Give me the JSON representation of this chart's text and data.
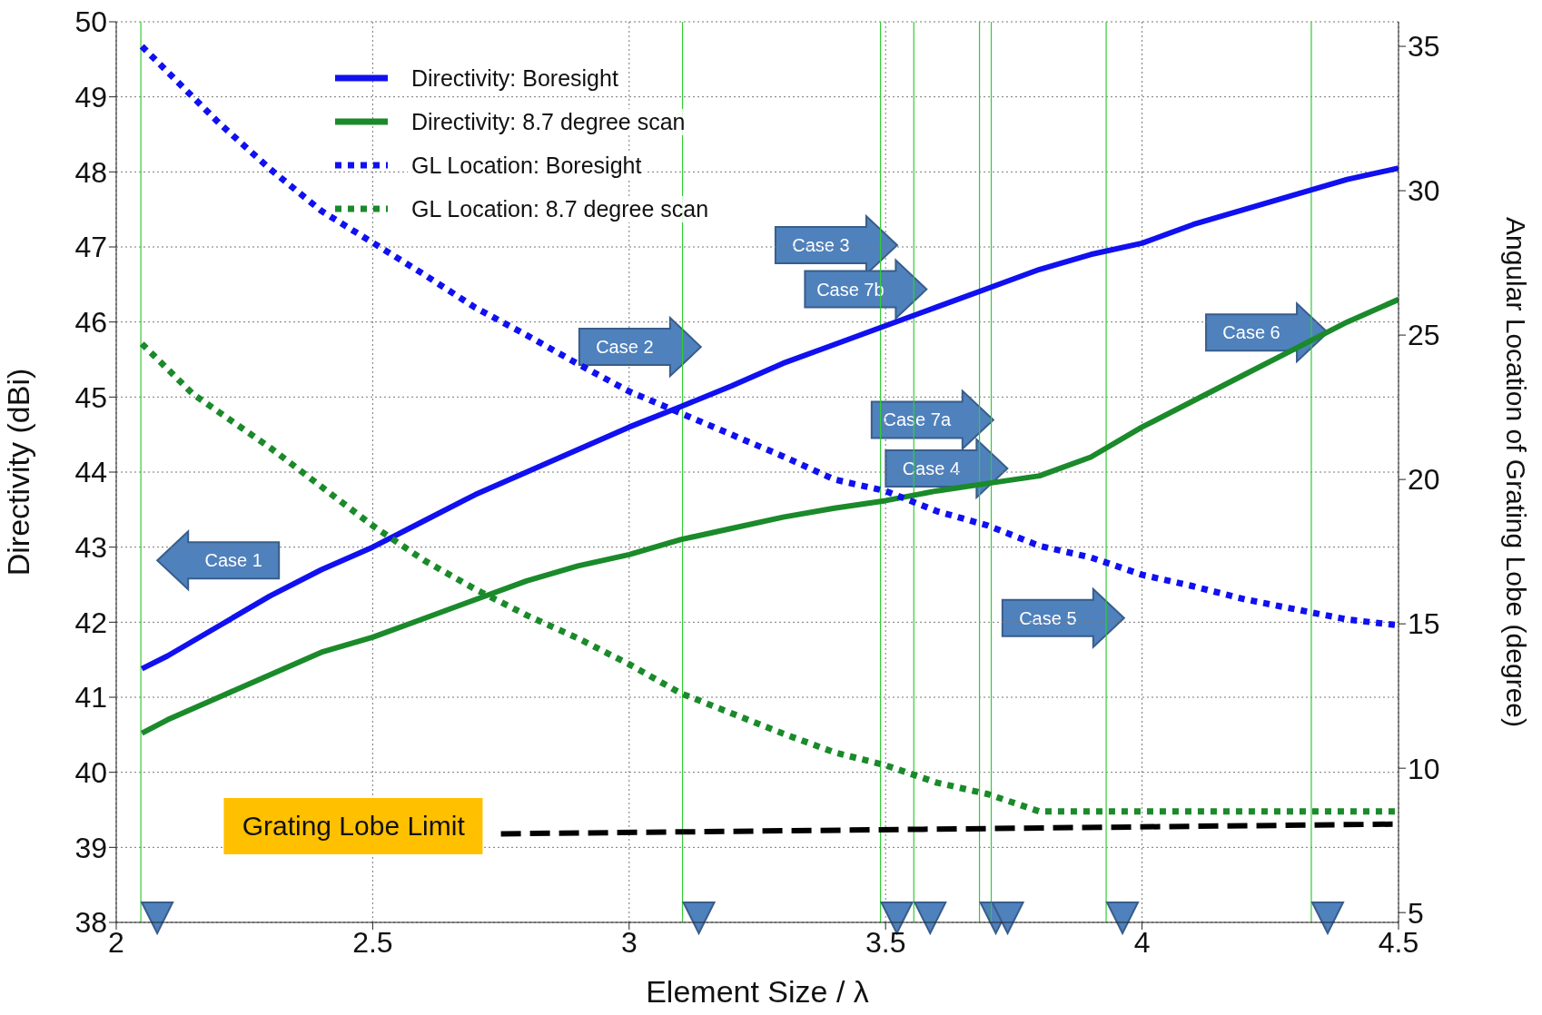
{
  "chart_data": {
    "type": "line",
    "xlabel": "Element Size / λ",
    "ylabel": "Directivity (dBi)",
    "y2label": "Angular Location of Grating Lobe (degree)",
    "xlim": [
      2,
      4.5
    ],
    "xticks": [
      2,
      2.5,
      3,
      3.5,
      4,
      4.5
    ],
    "ylim": [
      38,
      50
    ],
    "yticks": [
      38,
      39,
      40,
      41,
      42,
      43,
      44,
      45,
      46,
      47,
      48,
      49,
      50
    ],
    "y2lim": [
      4.66,
      35.85
    ],
    "y2ticks": [
      5,
      10,
      15,
      20,
      25,
      30,
      35
    ],
    "grid": true,
    "legend": "top left",
    "series": [
      {
        "name": "Directivity:  Boresight",
        "color": "#1010f0",
        "line_style": "solid",
        "x": [
          2.05,
          2.1,
          2.2,
          2.3,
          2.4,
          2.5,
          2.6,
          2.7,
          2.8,
          2.9,
          3.0,
          3.1,
          3.2,
          3.3,
          3.4,
          3.5,
          3.6,
          3.7,
          3.8,
          3.9,
          4.0,
          4.1,
          4.2,
          4.3,
          4.4,
          4.5
        ],
        "values": [
          41.38,
          41.55,
          41.95,
          42.35,
          42.7,
          43.0,
          43.35,
          43.7,
          44.0,
          44.3,
          44.6,
          44.87,
          45.15,
          45.45,
          45.7,
          45.95,
          46.2,
          46.45,
          46.7,
          46.9,
          47.05,
          47.3,
          47.5,
          47.7,
          47.9,
          48.05
        ]
      },
      {
        "name": "Directivity:  8.7 degree scan",
        "color": "#1a8a2a",
        "line_style": "solid",
        "x": [
          2.05,
          2.1,
          2.2,
          2.3,
          2.4,
          2.5,
          2.6,
          2.7,
          2.8,
          2.9,
          3.0,
          3.1,
          3.2,
          3.3,
          3.4,
          3.5,
          3.6,
          3.7,
          3.8,
          3.9,
          4.0,
          4.1,
          4.2,
          4.3,
          4.4,
          4.5
        ],
        "values": [
          40.52,
          40.7,
          41.0,
          41.3,
          41.6,
          41.8,
          42.05,
          42.3,
          42.55,
          42.75,
          42.9,
          43.1,
          43.25,
          43.4,
          43.52,
          43.62,
          43.75,
          43.85,
          43.95,
          44.2,
          44.6,
          44.95,
          45.3,
          45.65,
          46.0,
          46.3
        ]
      },
      {
        "name": "GL Location:  Boresight",
        "color": "#1010f0",
        "line_style": "dotted",
        "axis": "y2",
        "x": [
          2.05,
          2.2,
          2.3,
          2.4,
          2.5,
          2.6,
          2.7,
          2.8,
          2.9,
          3.0,
          3.1,
          3.2,
          3.3,
          3.4,
          3.5,
          3.6,
          3.7,
          3.8,
          3.9,
          4.0,
          4.1,
          4.2,
          4.3,
          4.4,
          4.5
        ],
        "values": [
          35.0,
          32.35,
          30.75,
          29.3,
          28.2,
          27.1,
          25.95,
          25.0,
          24.0,
          23.05,
          22.3,
          21.55,
          20.8,
          20.0,
          19.6,
          18.9,
          18.4,
          17.7,
          17.3,
          16.7,
          16.3,
          15.85,
          15.5,
          15.15,
          14.95
        ]
      },
      {
        "name": "GL Location:  8.7 degree scan",
        "color": "#1a8a2a",
        "line_style": "dotted",
        "axis": "y2",
        "x": [
          2.05,
          2.15,
          2.3,
          2.4,
          2.5,
          2.6,
          2.7,
          2.8,
          2.9,
          3.0,
          3.1,
          3.2,
          3.3,
          3.4,
          3.5,
          3.6,
          3.7,
          3.8,
          3.85,
          4.5
        ],
        "values": [
          24.7,
          22.95,
          21.1,
          19.75,
          18.4,
          17.2,
          16.2,
          15.3,
          14.5,
          13.6,
          12.6,
          11.9,
          11.2,
          10.55,
          10.1,
          9.5,
          9.1,
          8.5,
          8.5,
          8.5
        ]
      },
      {
        "color": "#000000",
        "line_style": "dashed",
        "x": [
          2.75,
          4.5
        ],
        "values": [
          39.18,
          39.31
        ]
      }
    ],
    "ref_lines": [
      {
        "axis": "x",
        "value": 2.048,
        "color": "#33cc33"
      },
      {
        "axis": "x",
        "value": 3.104,
        "color": "#33cc33"
      },
      {
        "axis": "x",
        "value": 3.49,
        "color": "#33cc33"
      },
      {
        "axis": "x",
        "value": 3.555,
        "color": "#33cc33"
      },
      {
        "axis": "x",
        "value": 3.683,
        "color": "#33cc33"
      },
      {
        "axis": "x",
        "value": 3.706,
        "color": "#33cc33"
      },
      {
        "axis": "x",
        "value": 3.93,
        "color": "#33cc33"
      },
      {
        "axis": "x",
        "value": 4.33,
        "color": "#33cc33"
      }
    ],
    "annotations": [
      "Case 1",
      "Case 2",
      "Case 3",
      "Case 7b",
      "Case 7a",
      "Case 4",
      "Case 5",
      {
        "text": "Case 6",
        "x": 4.362,
        "y": 45.86
      },
      "Grating Lobe Limit"
    ]
  }
}
